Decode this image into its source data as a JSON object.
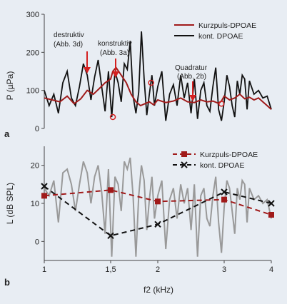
{
  "chart_data": [
    {
      "type": "line",
      "panel_label": "a",
      "ylabel": "P (µPa)",
      "ylim": [
        0,
        300
      ],
      "yticks": [
        0,
        100,
        200,
        300
      ],
      "xlim": [
        1,
        4
      ],
      "xscale": "log",
      "legend_placement": "top-right",
      "series": [
        {
          "name": "Kurzpuls-DPOAE",
          "color": "#a01a1a",
          "x": [
            1.0,
            1.05,
            1.1,
            1.15,
            1.2,
            1.25,
            1.3,
            1.35,
            1.4,
            1.45,
            1.5,
            1.52,
            1.55,
            1.6,
            1.65,
            1.7,
            1.75,
            1.8,
            1.85,
            1.9,
            1.95,
            2.0,
            2.1,
            2.2,
            2.3,
            2.4,
            2.5,
            2.6,
            2.7,
            2.8,
            2.9,
            2.95,
            3.0,
            3.1,
            3.2,
            3.3,
            3.4,
            3.5,
            3.6,
            3.7,
            3.8,
            3.9,
            4.0
          ],
          "y": [
            80,
            75,
            70,
            85,
            65,
            78,
            100,
            90,
            105,
            120,
            130,
            150,
            160,
            140,
            120,
            90,
            70,
            60,
            65,
            70,
            62,
            75,
            68,
            72,
            80,
            70,
            68,
            75,
            70,
            72,
            66,
            72,
            85,
            75,
            80,
            90,
            78,
            82,
            75,
            80,
            70,
            60,
            50
          ]
        },
        {
          "name": "kont. DPOAE",
          "color": "#111111",
          "x": [
            1.0,
            1.03,
            1.06,
            1.09,
            1.12,
            1.15,
            1.18,
            1.21,
            1.24,
            1.27,
            1.3,
            1.33,
            1.36,
            1.39,
            1.42,
            1.45,
            1.48,
            1.51,
            1.54,
            1.57,
            1.6,
            1.63,
            1.66,
            1.69,
            1.72,
            1.75,
            1.78,
            1.81,
            1.84,
            1.87,
            1.9,
            1.93,
            1.96,
            2.0,
            2.05,
            2.1,
            2.15,
            2.2,
            2.25,
            2.3,
            2.35,
            2.4,
            2.45,
            2.5,
            2.55,
            2.6,
            2.65,
            2.7,
            2.75,
            2.8,
            2.85,
            2.9,
            2.95,
            3.0,
            3.05,
            3.1,
            3.15,
            3.2,
            3.25,
            3.3,
            3.35,
            3.4,
            3.45,
            3.5,
            3.6,
            3.7,
            3.8,
            3.9,
            4.0
          ],
          "y": [
            100,
            60,
            90,
            40,
            120,
            150,
            80,
            60,
            110,
            170,
            140,
            75,
            135,
            180,
            110,
            45,
            150,
            30,
            150,
            120,
            70,
            170,
            155,
            230,
            85,
            40,
            95,
            255,
            130,
            35,
            90,
            140,
            60,
            110,
            150,
            20,
            90,
            115,
            60,
            140,
            80,
            120,
            40,
            130,
            25,
            100,
            120,
            60,
            45,
            110,
            160,
            50,
            20,
            70,
            140,
            110,
            60,
            30,
            125,
            90,
            140,
            130,
            50,
            125,
            90,
            100,
            80,
            85,
            50
          ]
        }
      ],
      "annotations": [
        {
          "text": "destruktiv (Abb. 3d)",
          "x": 1.52,
          "y": 30
        },
        {
          "text": "konstruktiv (Abb. 3a)",
          "x": 1.92,
          "y": 120
        },
        {
          "text": "Quadratur (Abb. 2b)",
          "x": 2.95,
          "y": 65
        }
      ],
      "labels": {
        "legend_a1": "Kurzpuls-DPOAE",
        "legend_a2": "kont. DPOAE",
        "ann1_l1": "destruktiv",
        "ann1_l2": "(Abb. 3d)",
        "ann2_l1": "konstruktiv",
        "ann2_l2": "(Abb. 3a)",
        "ann3_l1": "Quadratur",
        "ann3_l2": "(Abb. 2b)"
      }
    },
    {
      "type": "line",
      "panel_label": "b",
      "ylabel": "L (dB SPL)",
      "xlabel": "f2 (kHz)",
      "ylim": [
        -5,
        25
      ],
      "yticks": [
        0,
        10,
        20
      ],
      "xlim": [
        1,
        4
      ],
      "xscale": "log",
      "xticks": [
        1,
        1.5,
        2,
        3,
        4
      ],
      "xtick_labels": [
        "1",
        "1,5",
        "2",
        "3",
        "4"
      ],
      "legend_placement": "top-right",
      "series": [
        {
          "name": "Kurzpuls-DPOAE",
          "color": "#a01a1a",
          "marker": "square",
          "x": [
            1.0,
            1.5,
            2.0,
            3.0,
            4.0
          ],
          "y": [
            12,
            13.5,
            10.5,
            11,
            7
          ]
        },
        {
          "name": "kont. DPOAE",
          "color": "#111111",
          "marker": "x",
          "x": [
            1.0,
            1.5,
            2.0,
            3.0,
            4.0
          ],
          "y": [
            14.5,
            1.5,
            4.5,
            13,
            10
          ]
        },
        {
          "name": "",
          "color": "#999999",
          "x": [
            1.0,
            1.03,
            1.06,
            1.09,
            1.12,
            1.15,
            1.18,
            1.21,
            1.24,
            1.27,
            1.3,
            1.33,
            1.36,
            1.39,
            1.42,
            1.45,
            1.48,
            1.51,
            1.54,
            1.57,
            1.6,
            1.63,
            1.66,
            1.69,
            1.72,
            1.75,
            1.78,
            1.81,
            1.84,
            1.87,
            1.9,
            1.93,
            1.96,
            2.0,
            2.05,
            2.1,
            2.15,
            2.2,
            2.25,
            2.3,
            2.35,
            2.4,
            2.45,
            2.5,
            2.55,
            2.6,
            2.65,
            2.7,
            2.75,
            2.8,
            2.85,
            2.9,
            2.95,
            3.0,
            3.05,
            3.1,
            3.15,
            3.2,
            3.25,
            3.3,
            3.35,
            3.4,
            3.45,
            3.5,
            3.6,
            3.7,
            3.8,
            3.9,
            4.0
          ],
          "y": [
            14,
            12,
            16,
            5,
            18,
            19,
            15,
            8,
            15,
            21,
            18,
            10,
            17,
            20,
            13,
            2,
            19,
            -4,
            17,
            15,
            8,
            21,
            19,
            22,
            12,
            -4,
            12,
            20,
            16,
            3,
            11,
            17,
            6,
            12,
            16,
            -2,
            11,
            14,
            6,
            15,
            10,
            14,
            3,
            15,
            -4,
            12,
            14,
            6,
            4,
            12,
            17,
            5,
            -3,
            9,
            16,
            14,
            8,
            2,
            14,
            11,
            16,
            15,
            5,
            14,
            11,
            12,
            10,
            11,
            6
          ]
        }
      ],
      "labels": {
        "legend_b1": "Kurzpuls-DPOAE",
        "legend_b2": "kont. DPOAE"
      }
    }
  ]
}
